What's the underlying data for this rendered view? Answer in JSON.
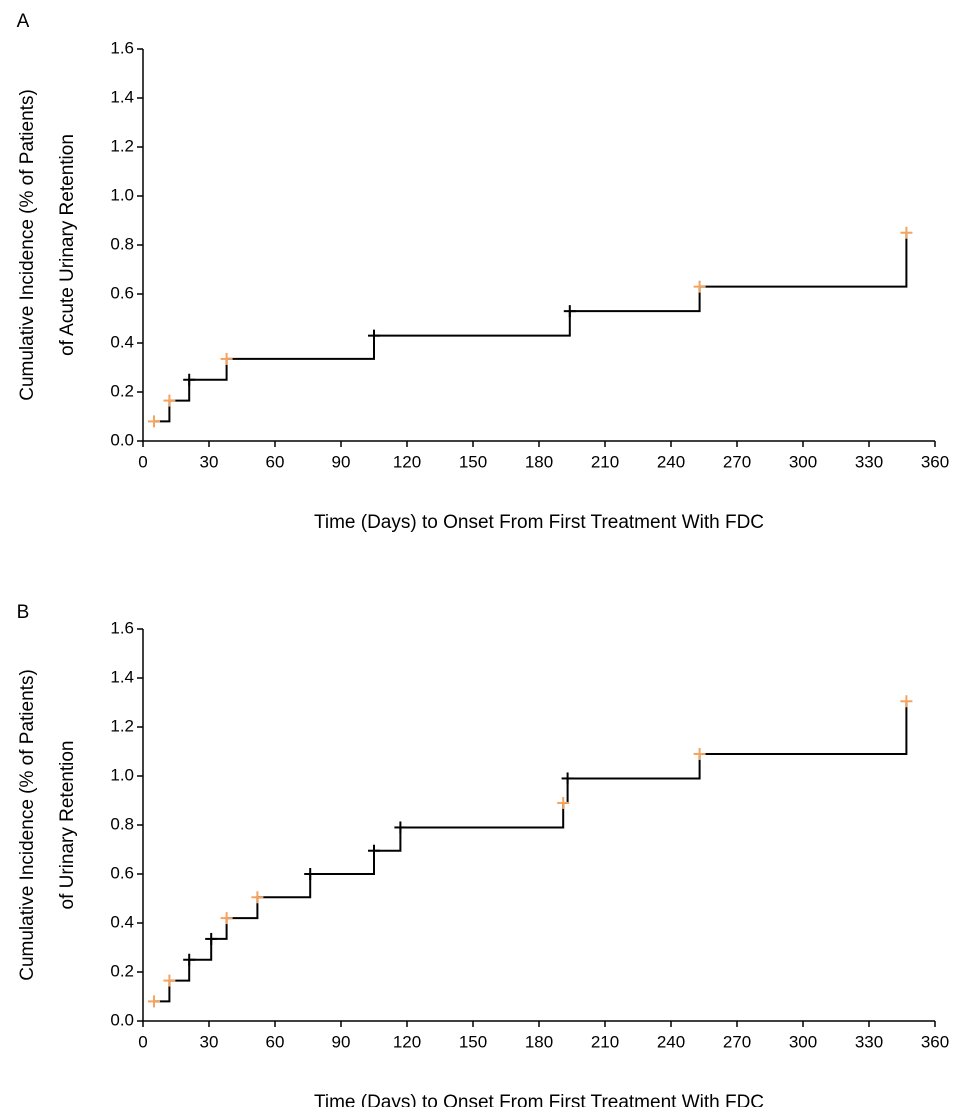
{
  "chart_data": [
    {
      "panel": "A",
      "type": "line",
      "line_style": "step",
      "xlabel": "Time (Days) to Onset From First Treatment With FDC",
      "ylabel": [
        "Cumulative Incidence (% of Patients)",
        "of Acute Urinary Retention"
      ],
      "xlim": [
        0,
        360
      ],
      "ylim": [
        0,
        1.6
      ],
      "xticks": [
        0,
        30,
        60,
        90,
        120,
        150,
        180,
        210,
        240,
        270,
        300,
        330,
        360
      ],
      "yticks": [
        "0.0",
        "0.2",
        "0.4",
        "0.6",
        "0.8",
        "1.0",
        "1.2",
        "1.4",
        "1.6"
      ],
      "grid": false,
      "line_color": "#000000",
      "steps": [
        {
          "x": 5,
          "y": 0.08,
          "marker": "orange"
        },
        {
          "x": 12,
          "y": 0.165,
          "marker": "orange"
        },
        {
          "x": 21,
          "y": 0.25,
          "marker": "black"
        },
        {
          "x": 38,
          "y": 0.335,
          "marker": "orange"
        },
        {
          "x": 105,
          "y": 0.43,
          "marker": "black"
        },
        {
          "x": 194,
          "y": 0.53,
          "marker": "black"
        },
        {
          "x": 253,
          "y": 0.63,
          "marker": "orange"
        },
        {
          "x": 347,
          "y": 0.85,
          "marker": "orange"
        }
      ]
    },
    {
      "panel": "B",
      "type": "line",
      "line_style": "step",
      "xlabel": "Time (Days) to Onset From First Treatment With FDC",
      "ylabel": [
        "Cumulative Incidence (% of Patients)",
        "of Urinary Retention"
      ],
      "xlim": [
        0,
        360
      ],
      "ylim": [
        0,
        1.6
      ],
      "xticks": [
        0,
        30,
        60,
        90,
        120,
        150,
        180,
        210,
        240,
        270,
        300,
        330,
        360
      ],
      "yticks": [
        "0.0",
        "0.2",
        "0.4",
        "0.6",
        "0.8",
        "1.0",
        "1.2",
        "1.4",
        "1.6"
      ],
      "grid": false,
      "line_color": "#000000",
      "steps": [
        {
          "x": 5,
          "y": 0.08,
          "marker": "orange"
        },
        {
          "x": 12,
          "y": 0.165,
          "marker": "orange"
        },
        {
          "x": 21,
          "y": 0.25,
          "marker": "black"
        },
        {
          "x": 31,
          "y": 0.335,
          "marker": "black"
        },
        {
          "x": 38,
          "y": 0.42,
          "marker": "orange"
        },
        {
          "x": 52,
          "y": 0.505,
          "marker": "orange"
        },
        {
          "x": 76,
          "y": 0.6,
          "marker": "black"
        },
        {
          "x": 105,
          "y": 0.695,
          "marker": "black"
        },
        {
          "x": 117,
          "y": 0.79,
          "marker": "black"
        },
        {
          "x": 191,
          "y": 0.89,
          "marker": "orange"
        },
        {
          "x": 193,
          "y": 0.99,
          "marker": "black"
        },
        {
          "x": 253,
          "y": 1.09,
          "marker": "orange"
        },
        {
          "x": 347,
          "y": 1.305,
          "marker": "orange"
        }
      ]
    }
  ],
  "colors": {
    "axis": "#000000",
    "step_line": "#000000",
    "marker_orange": "#F4A460",
    "marker_black": "#000000"
  }
}
